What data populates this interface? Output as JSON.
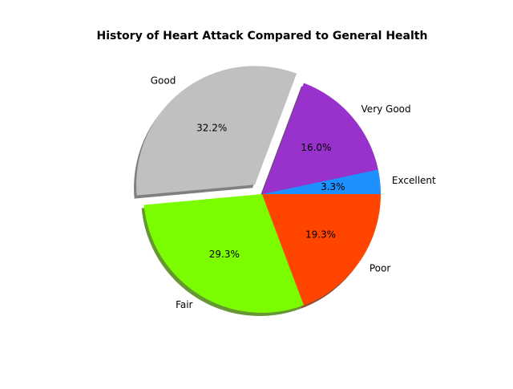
{
  "chart_data": {
    "type": "pie",
    "title": "History of Heart Attack Compared to General Health",
    "start_angle_deg": 0,
    "direction": "counterclockwise",
    "shadow": true,
    "slices": [
      {
        "label": "Excellent",
        "value": 3.3,
        "pct_label": "3.3%",
        "color": "#1e90ff",
        "explode": 0
      },
      {
        "label": "Very Good",
        "value": 16.0,
        "pct_label": "16.0%",
        "color": "#9932cc",
        "explode": 0
      },
      {
        "label": "Good",
        "value": 32.2,
        "pct_label": "32.2%",
        "color": "#c0c0c0",
        "explode": 0.1
      },
      {
        "label": "Fair",
        "value": 29.3,
        "pct_label": "29.3%",
        "color": "#7cfc00",
        "explode": 0
      },
      {
        "label": "Poor",
        "value": 19.3,
        "pct_label": "19.3%",
        "color": "#ff4500",
        "explode": 0
      }
    ]
  }
}
